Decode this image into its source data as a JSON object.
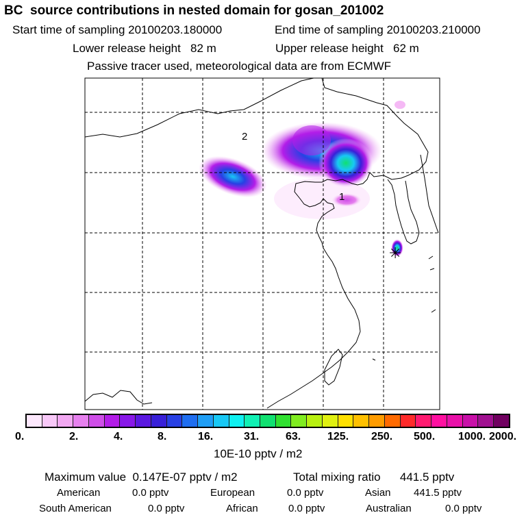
{
  "header": {
    "title": "BC  source contributions in nested domain for gosan_201002",
    "start_time": "Start time of sampling 20100203.180000",
    "end_time": "End time of sampling 20100203.210000",
    "lower_release": "Lower release height   82 m",
    "upper_release": "Upper release height   62 m",
    "tracer_note": "Passive tracer used, meteorological data are from ECMWF"
  },
  "map": {
    "marker_1_label": "1",
    "marker_2_label": "2",
    "receptor_symbol": "✳"
  },
  "colorbar": {
    "colors": [
      "#fde8fd",
      "#f8c8f8",
      "#f2a8f2",
      "#e680ee",
      "#cf4ee8",
      "#b31de8",
      "#8818e8",
      "#5a18e0",
      "#3820d8",
      "#2840e4",
      "#1f6ef0",
      "#1f9ef5",
      "#18c8f5",
      "#0ff0f0",
      "#10f0b4",
      "#10e070",
      "#30e030",
      "#80ec20",
      "#b8f010",
      "#e0f010",
      "#ffe000",
      "#ffc000",
      "#ff9c00",
      "#ff6a00",
      "#ff2a2a",
      "#ff1a70",
      "#ff10a0",
      "#e810a8",
      "#c810a8",
      "#a01090",
      "#700060"
    ],
    "ticks": [
      "0.",
      "2.",
      "4.",
      "8.",
      "16.",
      "31.",
      "63.",
      "125.",
      "250.",
      "500.",
      "1000.",
      "2000."
    ],
    "unit_label": "10E-10 pptv / m2"
  },
  "summary": {
    "max_value": "Maximum value  0.147E-07 pptv / m2",
    "total_mixing": "Total mixing ratio      441.5 pptv",
    "american_label": "American",
    "american_value": "0.0 pptv",
    "european_label": "European",
    "european_value": "0.0 pptv",
    "asian_label": "Asian",
    "asian_value": "441.5 pptv",
    "south_american_label": "South American",
    "south_american_value": "0.0 pptv",
    "african_label": "African",
    "african_value": "0.0 pptv",
    "australian_label": "Australian",
    "australian_value": "0.0 pptv"
  }
}
